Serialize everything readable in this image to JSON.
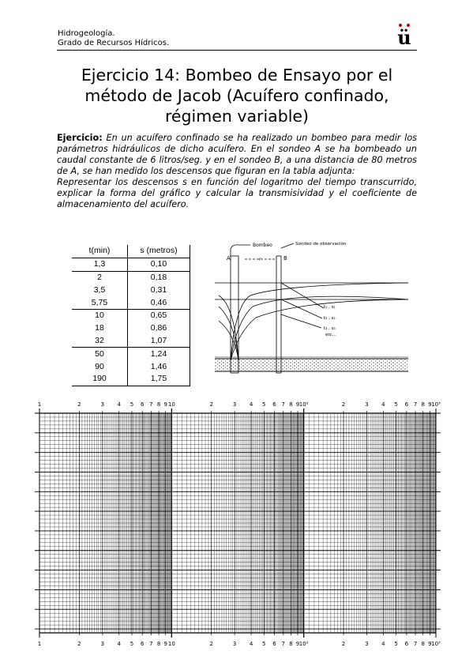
{
  "header": {
    "line1": "Hidrogeología.",
    "line2": "Grado de Recursos Hídricos.",
    "logo_letter": "ü",
    "logo_dot_color": "#c00000"
  },
  "title": {
    "line1": "Ejercicio 14: Bombeo de Ensayo por el",
    "line2": "método de Jacob (Acuífero confinado,",
    "line3": "régimen variable)"
  },
  "exercise": {
    "label": "Ejercicio:",
    "paragraph1": " En un acuífero confinado se ha realizado un bombeo para medir los parámetros hidráulicos de dicho acuífero. En el sondeo A se ha bombeado un caudal constante de 6 litros/seg. y en el sondeo B, a una distancia de 80 metros de A, se han medido los descensos que figuran en la tabla adjunta:",
    "paragraph2": "Representar los descensos s en función del logaritmo del tiempo transcurrido, explicar la forma del gráfico y calcular la transmisividad y el coeficiente de almacenamiento del acuífero."
  },
  "table": {
    "col_t": "t(min)",
    "col_s": "s (metros)",
    "rows": [
      {
        "t": "1,3",
        "s": "0,10"
      },
      {
        "t": "2",
        "s": "0,18"
      },
      {
        "t": "3,5",
        "s": "0,31"
      },
      {
        "t": "5,75",
        "s": "0,46"
      },
      {
        "t": "10",
        "s": "0,65"
      },
      {
        "t": "18",
        "s": "0,86"
      },
      {
        "t": "32",
        "s": "1,07"
      },
      {
        "t": "50",
        "s": "1,24"
      },
      {
        "t": "90",
        "s": "1,46"
      },
      {
        "t": "190",
        "s": "1,75"
      }
    ]
  },
  "diagram": {
    "label_a": "A",
    "label_b": "B",
    "label_bombeo": "Bombeo",
    "label_r": "r",
    "label_obs": "Sondeo de observación",
    "label_t1": "t₁ , s₁",
    "label_t2": "t₂ , s₂",
    "label_t3": "t₃ , s₃",
    "label_etc": "etc..."
  },
  "logpaper": {
    "cycle_labels": [
      "1",
      "2",
      "3",
      "4",
      "5",
      "6",
      "7",
      "8",
      "9",
      "10"
    ],
    "cycle2_end": "10²",
    "cycle3_end": "10³",
    "cycles": 3
  }
}
